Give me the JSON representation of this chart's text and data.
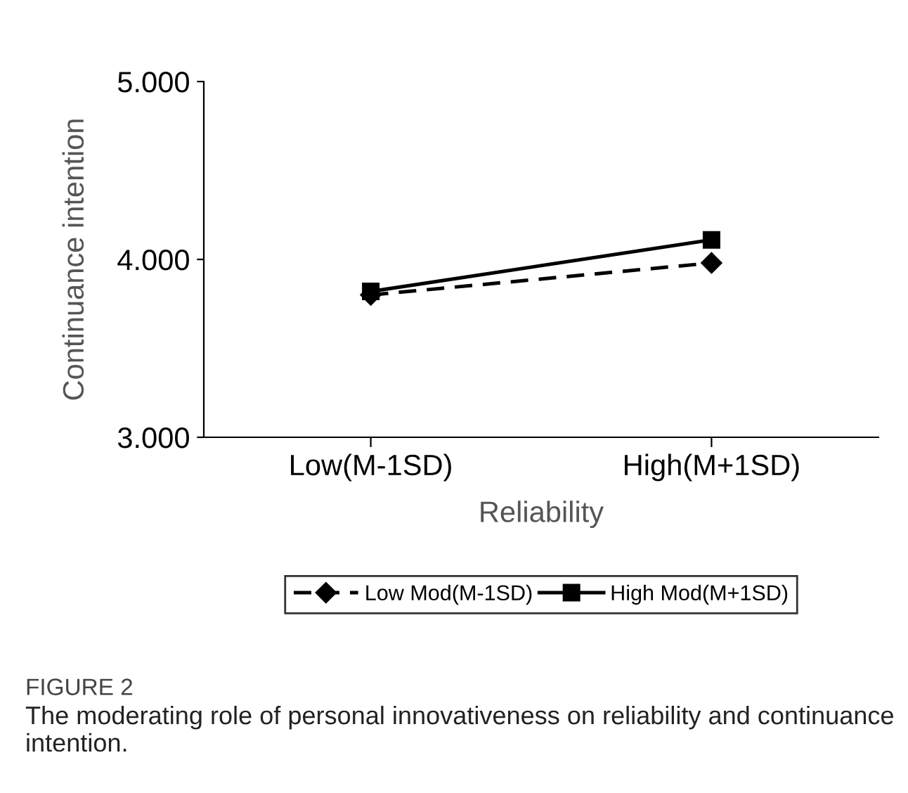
{
  "chart_data": {
    "type": "line",
    "xlabel": "Reliability",
    "ylabel": "Continuance intention",
    "categories": [
      "Low(M-1SD)",
      "High(M+1SD)"
    ],
    "series": [
      {
        "name": "Low Mod(M-1SD)",
        "color": "#000000",
        "values": [
          3.8,
          3.98
        ],
        "marker": "diamond",
        "line_style": "dashed"
      },
      {
        "name": "High Mod(M+1SD)",
        "color": "#000000",
        "values": [
          3.82,
          4.11
        ],
        "marker": "square",
        "line_style": "solid"
      }
    ],
    "ylim": [
      3,
      5
    ],
    "yticks": [
      {
        "value": 3,
        "label": "3.000"
      },
      {
        "value": 4,
        "label": "4.000"
      },
      {
        "value": 5,
        "label": "5.000"
      }
    ],
    "grid": false,
    "legend": "bottom",
    "annotations": [
      "FIGURE 2",
      "The moderating role of personal innovativeness on reliability and continuance intention."
    ]
  }
}
